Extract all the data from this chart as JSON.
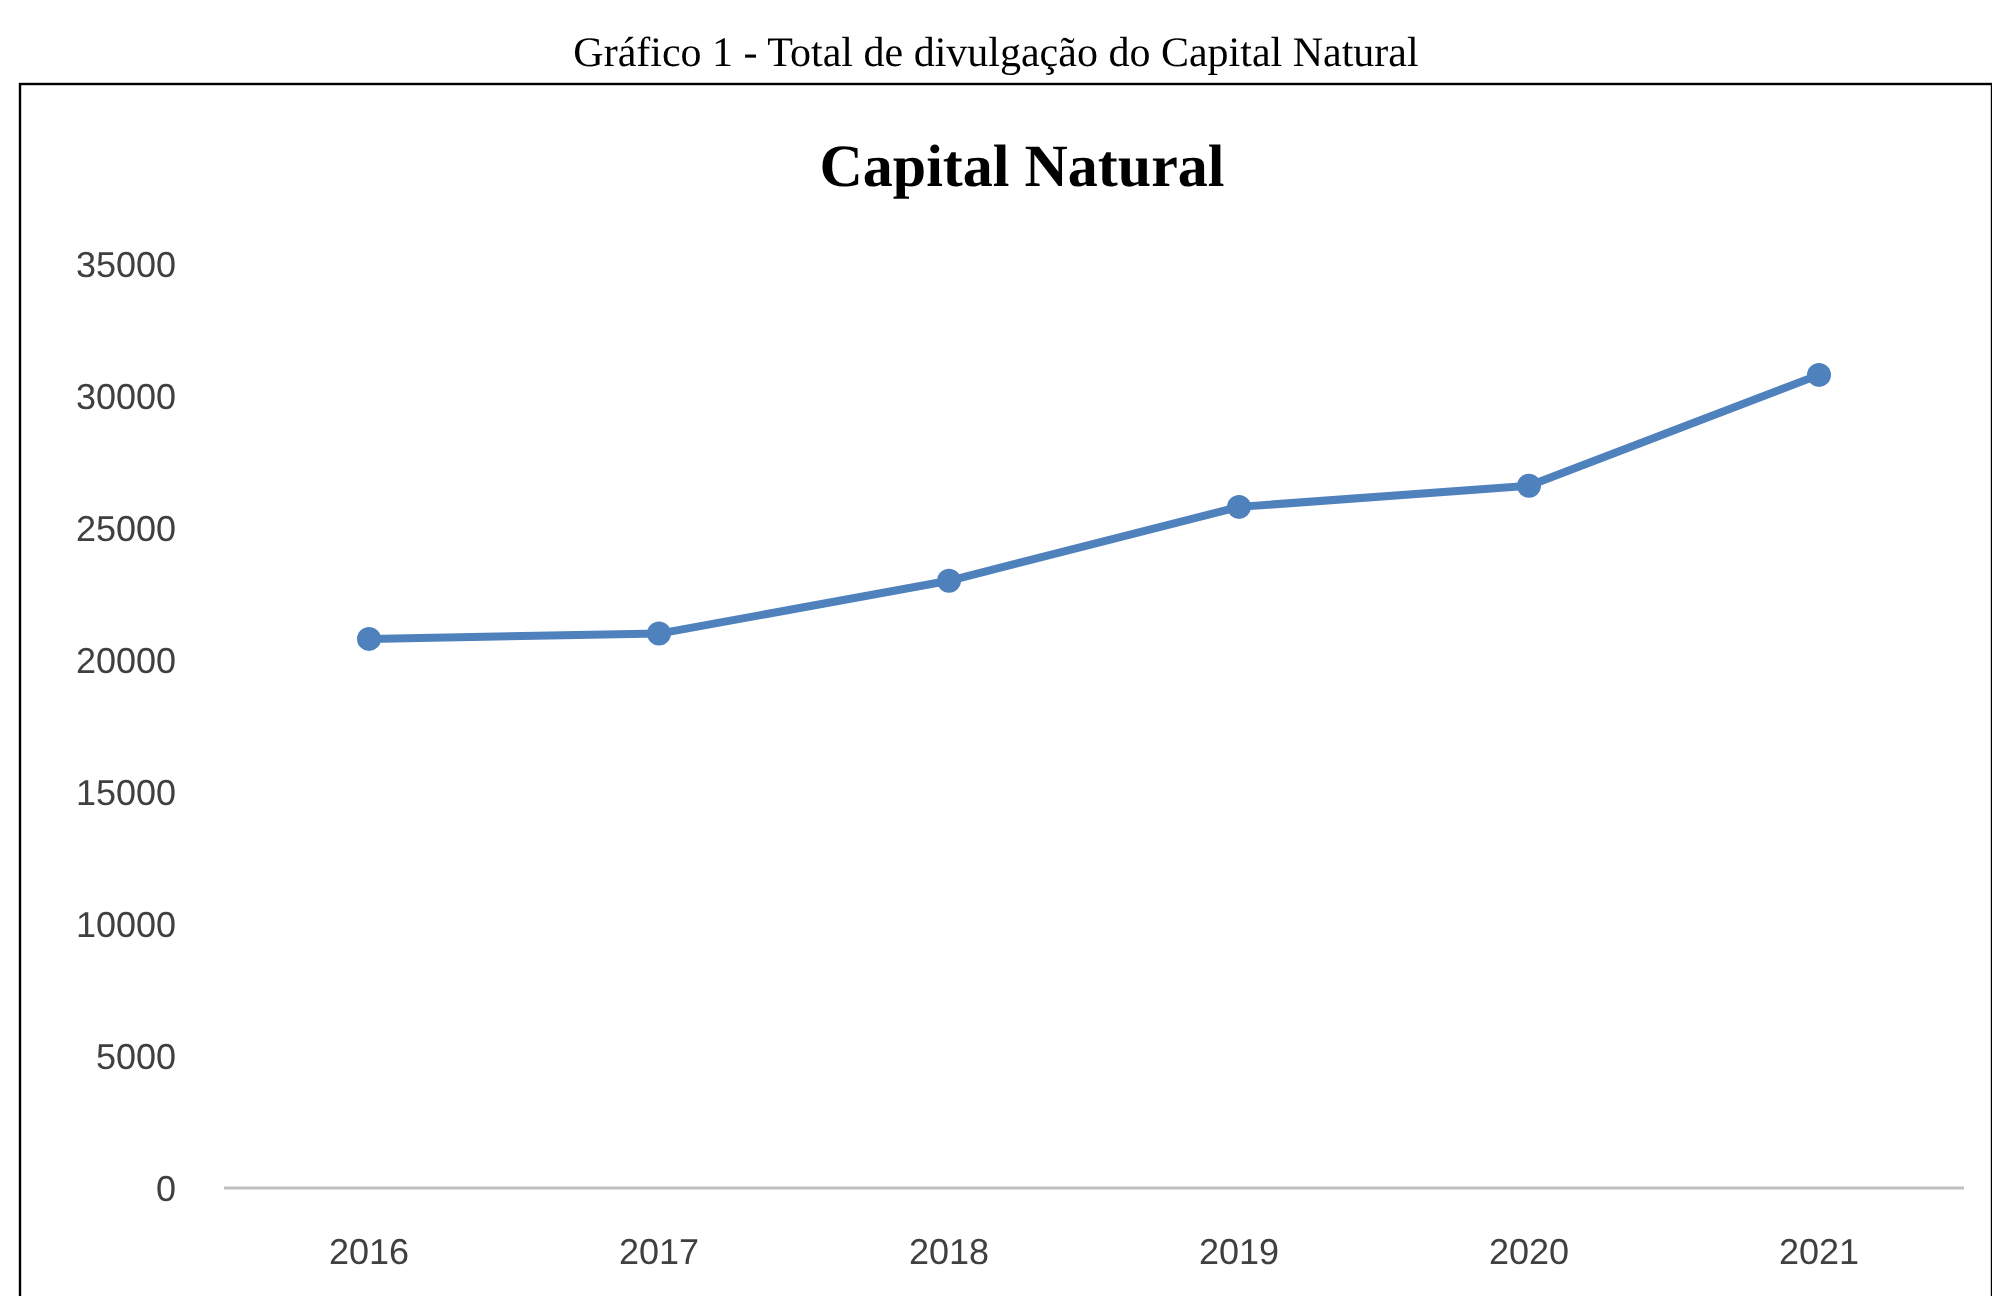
{
  "chart_data": {
    "type": "line",
    "title": "Capital Natural",
    "annotations": [
      "Gráfico 1 - Total de divulgação do Capital Natural"
    ],
    "categories": [
      "2016",
      "2017",
      "2018",
      "2019",
      "2020",
      "2021"
    ],
    "series": [
      {
        "color": "#4f81bd",
        "values": [
          20800,
          21000,
          23000,
          25800,
          26600,
          30800
        ]
      }
    ],
    "ylim": [
      0,
      35000
    ],
    "yticks": [
      0,
      5000,
      10000,
      15000,
      20000,
      25000,
      30000,
      35000
    ],
    "grid": false,
    "marker": "circle",
    "line_style": "solid"
  }
}
